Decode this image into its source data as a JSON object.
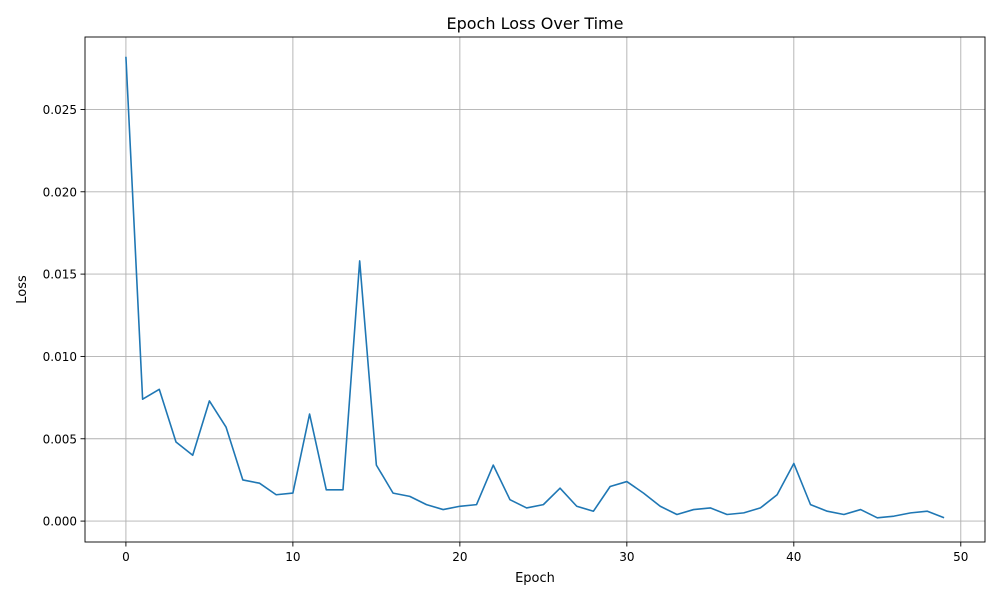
{
  "chart_data": {
    "type": "line",
    "title": "Epoch Loss Over Time",
    "xlabel": "Epoch",
    "ylabel": "Loss",
    "xlim": [
      -2.45,
      51.45
    ],
    "ylim": [
      -0.00127,
      0.0294
    ],
    "grid": true,
    "x_ticks": [
      0,
      10,
      20,
      30,
      40,
      50
    ],
    "x_tick_labels": [
      "0",
      "10",
      "20",
      "30",
      "40",
      "50"
    ],
    "y_ticks": [
      0.0,
      0.005,
      0.01,
      0.015,
      0.02,
      0.025
    ],
    "y_tick_labels": [
      "0.000",
      "0.005",
      "0.010",
      "0.015",
      "0.020",
      "0.025"
    ],
    "series": [
      {
        "color": "#1f77b4",
        "x": [
          0,
          1,
          2,
          3,
          4,
          5,
          6,
          7,
          8,
          9,
          10,
          11,
          12,
          13,
          14,
          15,
          16,
          17,
          18,
          19,
          20,
          21,
          22,
          23,
          24,
          25,
          26,
          27,
          28,
          29,
          30,
          31,
          32,
          33,
          34,
          35,
          36,
          37,
          38,
          39,
          40,
          41,
          42,
          43,
          44,
          45,
          46,
          47,
          48,
          49
        ],
        "y": [
          0.0282,
          0.0074,
          0.008,
          0.0048,
          0.004,
          0.0073,
          0.0057,
          0.0025,
          0.0023,
          0.0016,
          0.0017,
          0.0065,
          0.0019,
          0.0019,
          0.0158,
          0.0034,
          0.0017,
          0.0015,
          0.001,
          0.0007,
          0.0009,
          0.001,
          0.0034,
          0.0013,
          0.0008,
          0.001,
          0.002,
          0.0009,
          0.0006,
          0.0021,
          0.0024,
          0.0017,
          0.0009,
          0.0004,
          0.0007,
          0.0008,
          0.0004,
          0.0005,
          0.0008,
          0.0016,
          0.0035,
          0.001,
          0.0006,
          0.0004,
          0.0007,
          0.0002,
          0.0003,
          0.0005,
          0.0006,
          0.0002
        ]
      }
    ]
  }
}
